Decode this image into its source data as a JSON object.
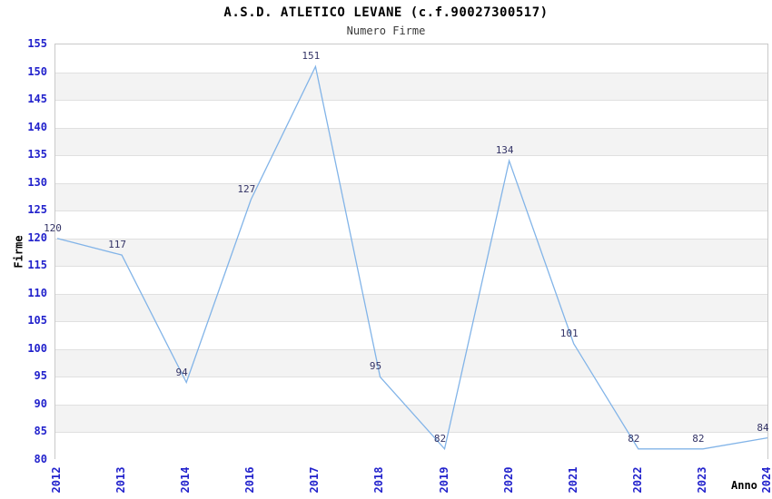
{
  "header": {
    "title": "A.S.D. ATLETICO LEVANE (c.f.90027300517)",
    "subtitle": "Numero Firme"
  },
  "chart_data": {
    "type": "line",
    "title": "A.S.D. ATLETICO LEVANE (c.f.90027300517)",
    "subtitle": "Numero Firme",
    "categories": [
      "2012",
      "2013",
      "2014",
      "2016",
      "2017",
      "2018",
      "2019",
      "2020",
      "2021",
      "2022",
      "2023",
      "2024"
    ],
    "series": [
      {
        "name": "Numero Firme",
        "values": [
          120,
          117,
          94,
          127,
          151,
          95,
          82,
          134,
          101,
          82,
          82,
          84
        ]
      }
    ],
    "xlabel": "Anno",
    "ylabel": "Firme",
    "ylim": [
      80,
      155
    ],
    "y_tick_step": 5,
    "grid": "horizontal-only",
    "alternating_bands": true,
    "legend_position": "none",
    "data_labels_visible": true,
    "colors": {
      "line": "#82b4e8",
      "data_label": "#333366",
      "tick_label": "#2222cc",
      "band_gray": "#f3f3f3",
      "band_white": "#ffffff",
      "gridline": "#e0e0e0",
      "plot_border": "#c9c9c9",
      "title": "#000000",
      "subtitle": "#3a3a3a",
      "axis_title": "#000000"
    }
  }
}
